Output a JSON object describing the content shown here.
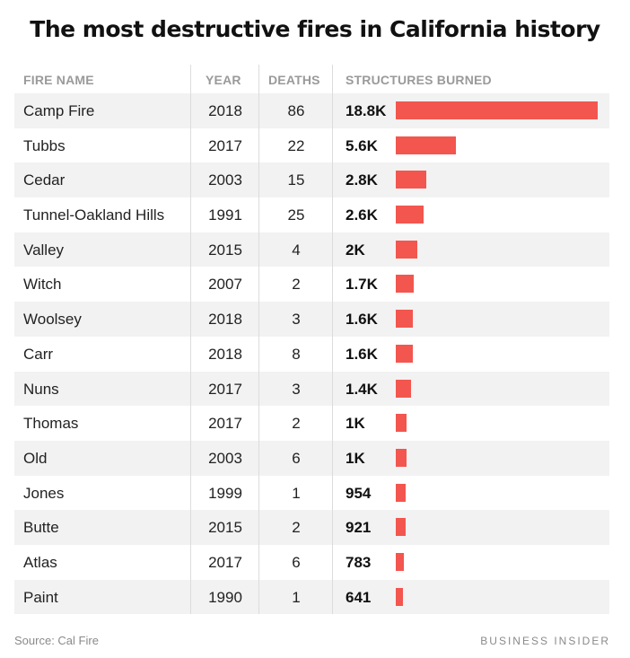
{
  "title": "The most destructive fires in California history",
  "headers": {
    "name": "FIRE NAME",
    "year": "YEAR",
    "deaths": "DEATHS",
    "structures": "STRUCTURES BURNED"
  },
  "bar_color": "#f2564f",
  "chart_data": {
    "type": "table",
    "title": "The most destructive fires in California history",
    "columns": [
      "FIRE NAME",
      "YEAR",
      "DEATHS",
      "STRUCTURES BURNED"
    ],
    "rows": [
      {
        "name": "Camp Fire",
        "year": "2018",
        "deaths": "86",
        "structures": "18.8K",
        "value": 18800
      },
      {
        "name": "Tubbs",
        "year": "2017",
        "deaths": "22",
        "structures": "5.6K",
        "value": 5600
      },
      {
        "name": "Cedar",
        "year": "2003",
        "deaths": "15",
        "structures": "2.8K",
        "value": 2800
      },
      {
        "name": "Tunnel-Oakland Hills",
        "year": "1991",
        "deaths": "25",
        "structures": "2.6K",
        "value": 2600
      },
      {
        "name": "Valley",
        "year": "2015",
        "deaths": "4",
        "structures": "2K",
        "value": 2000
      },
      {
        "name": "Witch",
        "year": "2007",
        "deaths": "2",
        "structures": "1.7K",
        "value": 1700
      },
      {
        "name": "Woolsey",
        "year": "2018",
        "deaths": "3",
        "structures": "1.6K",
        "value": 1600
      },
      {
        "name": "Carr",
        "year": "2018",
        "deaths": "8",
        "structures": "1.6K",
        "value": 1600
      },
      {
        "name": "Nuns",
        "year": "2017",
        "deaths": "3",
        "structures": "1.4K",
        "value": 1400
      },
      {
        "name": "Thomas",
        "year": "2017",
        "deaths": "2",
        "structures": "1K",
        "value": 1000
      },
      {
        "name": "Old",
        "year": "2003",
        "deaths": "6",
        "structures": "1K",
        "value": 1000
      },
      {
        "name": "Jones",
        "year": "1999",
        "deaths": "1",
        "structures": "954",
        "value": 954
      },
      {
        "name": "Butte",
        "year": "2015",
        "deaths": "2",
        "structures": "921",
        "value": 921
      },
      {
        "name": "Atlas",
        "year": "2017",
        "deaths": "6",
        "structures": "783",
        "value": 783
      },
      {
        "name": "Paint",
        "year": "1990",
        "deaths": "1",
        "structures": "641",
        "value": 641
      }
    ]
  },
  "footer": {
    "source": "Source: Cal Fire",
    "credit": "BUSINESS INSIDER"
  }
}
